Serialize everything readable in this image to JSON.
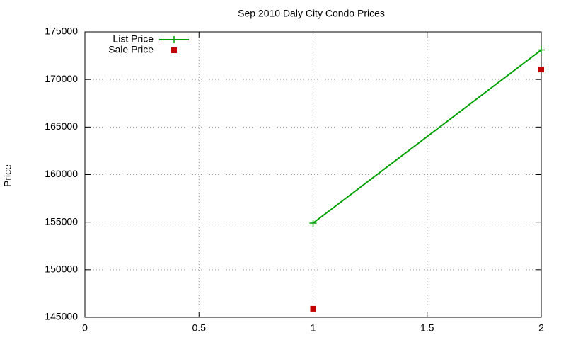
{
  "chart_data": {
    "type": "line",
    "title": "Sep 2010 Daly City Condo Prices",
    "y_label": "Price",
    "x": [
      1,
      2
    ],
    "series": [
      {
        "name": "List Price",
        "color": "#00a000",
        "style": "linespoints",
        "values": [
          154900,
          173100
        ]
      },
      {
        "name": "Sale Price",
        "color": "#c00000",
        "style": "points",
        "values": [
          145900,
          171050
        ]
      }
    ],
    "xlim": [
      0,
      2
    ],
    "xticks": [
      0,
      0.5,
      1,
      1.5,
      2
    ],
    "ylim": [
      145000,
      175000
    ],
    "yticks": [
      145000,
      150000,
      155000,
      160000,
      165000,
      170000,
      175000
    ],
    "grid": true,
    "legend": "top-left"
  }
}
